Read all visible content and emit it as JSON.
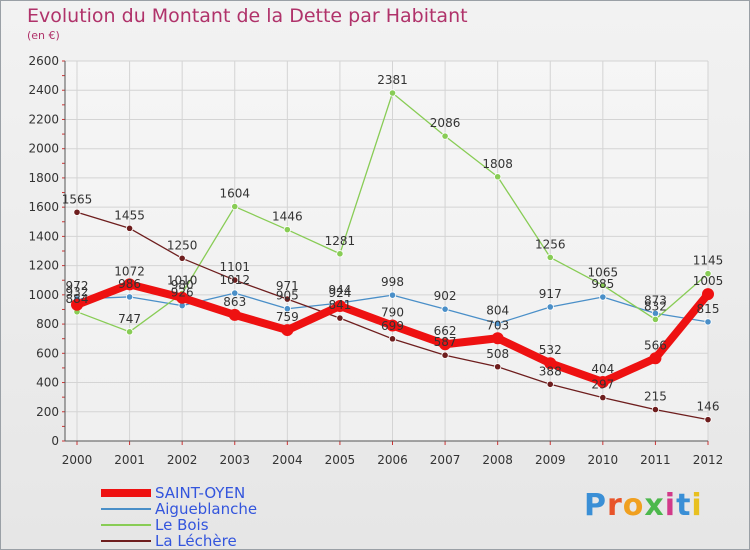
{
  "title": "Evolution du Montant de la Dette par Habitant",
  "subtitle": "(en €)",
  "logo": {
    "text": "Proxiti",
    "colors": [
      "#3a8fd6",
      "#e8542a",
      "#f0a020",
      "#4db84d",
      "#d23a8a",
      "#3a8fd6",
      "#e8c020"
    ]
  },
  "chart_data": {
    "type": "line",
    "title": "Evolution du Montant de la Dette par Habitant",
    "ylabel": "(en €)",
    "x": [
      "2000",
      "2001",
      "2002",
      "2003",
      "2004",
      "2005",
      "2006",
      "2007",
      "2008",
      "2009",
      "2010",
      "2011",
      "2012"
    ],
    "ylim": [
      0,
      2600
    ],
    "yticks": [
      0,
      200,
      400,
      600,
      800,
      1000,
      1200,
      1400,
      1600,
      1800,
      2000,
      2200,
      2400,
      2600
    ],
    "grid": true,
    "legend_position": "bottom-left",
    "series": [
      {
        "name": "SAINT-OYEN",
        "color": "#ee1111",
        "values": [
          932,
          1072,
          980,
          863,
          759,
          924,
          790,
          662,
          703,
          532,
          404,
          566,
          1005
        ]
      },
      {
        "name": "Aigueblanche",
        "color": "#4a8fc8",
        "values": [
          972,
          986,
          926,
          1012,
          905,
          944,
          998,
          902,
          804,
          917,
          985,
          873,
          815
        ]
      },
      {
        "name": "Le Bois",
        "color": "#88cc55",
        "values": [
          884,
          747,
          1010,
          1604,
          1446,
          1281,
          2381,
          2086,
          1808,
          1256,
          1065,
          832,
          1145
        ]
      },
      {
        "name": "La Léchère",
        "color": "#6e1e1e",
        "values": [
          1565,
          1455,
          1250,
          1101,
          971,
          841,
          699,
          587,
          508,
          388,
          297,
          215,
          146
        ]
      }
    ]
  }
}
